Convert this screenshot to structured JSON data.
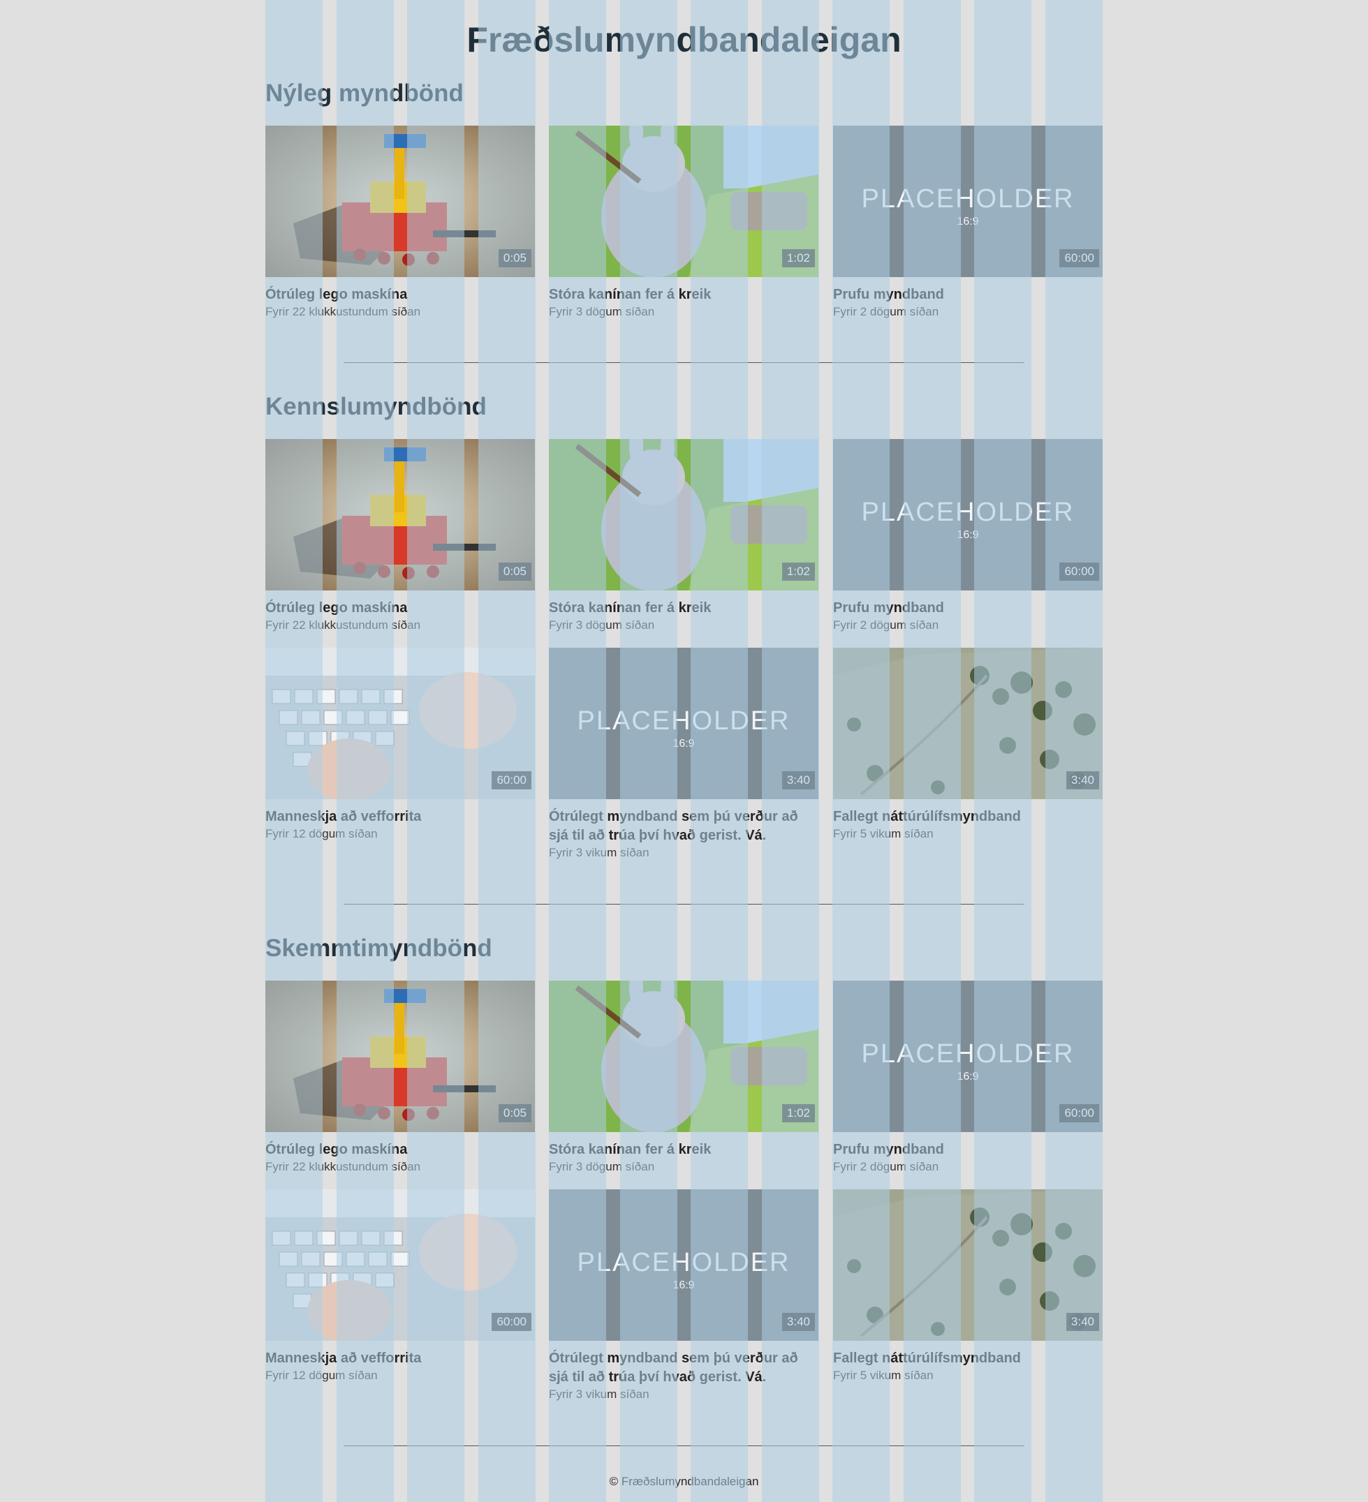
{
  "site": {
    "title": "Fræðslumyndbandaleigan"
  },
  "sections": [
    {
      "title": "Nýleg myndbönd",
      "videos": [
        {
          "thumb": "lego-machine",
          "duration": "0:05",
          "title": "Ótrúleg lego maskína",
          "meta": "Fyrir 22 klukkustundum síðan"
        },
        {
          "thumb": "big-bunny",
          "duration": "1:02",
          "title": "Stóra kanínan fer á kreik",
          "meta": "Fyrir 3 dögum síðan"
        },
        {
          "thumb": "placeholder",
          "duration": "60:00",
          "title": "Prufu myndband",
          "meta": "Fyrir 2 dögum síðan"
        }
      ]
    },
    {
      "title": "Kennslumyndbönd",
      "videos": [
        {
          "thumb": "lego-machine",
          "duration": "0:05",
          "title": "Ótrúleg lego maskína",
          "meta": "Fyrir 22 klukkustundum síðan"
        },
        {
          "thumb": "big-bunny",
          "duration": "1:02",
          "title": "Stóra kanínan fer á kreik",
          "meta": "Fyrir 3 dögum síðan"
        },
        {
          "thumb": "placeholder",
          "duration": "60:00",
          "title": "Prufu myndband",
          "meta": "Fyrir 2 dögum síðan"
        },
        {
          "thumb": "keyboard-hands",
          "duration": "60:00",
          "title": "Manneskja að vefforrita",
          "meta": "Fyrir 12 dögum síðan"
        },
        {
          "thumb": "placeholder",
          "duration": "3:40",
          "title": "Ótrúlegt myndband sem þú verður að sjá til að trúa því hvað gerist. Vá.",
          "meta": "Fyrir 3 vikum síðan"
        },
        {
          "thumb": "hillside",
          "duration": "3:40",
          "title": "Fallegt náttúrúlífsmyndband",
          "meta": "Fyrir 5 vikum síðan"
        }
      ]
    },
    {
      "title": "Skemmtimyndbönd",
      "videos": [
        {
          "thumb": "lego-machine",
          "duration": "0:05",
          "title": "Ótrúleg lego maskína",
          "meta": "Fyrir 22 klukkustundum síðan"
        },
        {
          "thumb": "big-bunny",
          "duration": "1:02",
          "title": "Stóra kanínan fer á kreik",
          "meta": "Fyrir 3 dögum síðan"
        },
        {
          "thumb": "placeholder",
          "duration": "60:00",
          "title": "Prufu myndband",
          "meta": "Fyrir 2 dögum síðan"
        },
        {
          "thumb": "keyboard-hands",
          "duration": "60:00",
          "title": "Manneskja að vefforrita",
          "meta": "Fyrir 12 dögum síðan"
        },
        {
          "thumb": "placeholder",
          "duration": "3:40",
          "title": "Ótrúlegt myndband sem þú verður að sjá til að trúa því hvað gerist. Vá.",
          "meta": "Fyrir 3 vikum síðan"
        },
        {
          "thumb": "hillside",
          "duration": "3:40",
          "title": "Fallegt náttúrúlífsmyndband",
          "meta": "Fyrir 5 vikum síðan"
        }
      ]
    }
  ],
  "placeholder": {
    "label": "PLACEHOLDER",
    "ratio": "16:9"
  },
  "footer": {
    "text": "© Fræðslumyndbandaleigan"
  },
  "colors": {
    "background": "#e0e0e0",
    "grid": "#adcde4",
    "text": "#1f2f3a",
    "placeholder_bg": "#7e8c96"
  }
}
